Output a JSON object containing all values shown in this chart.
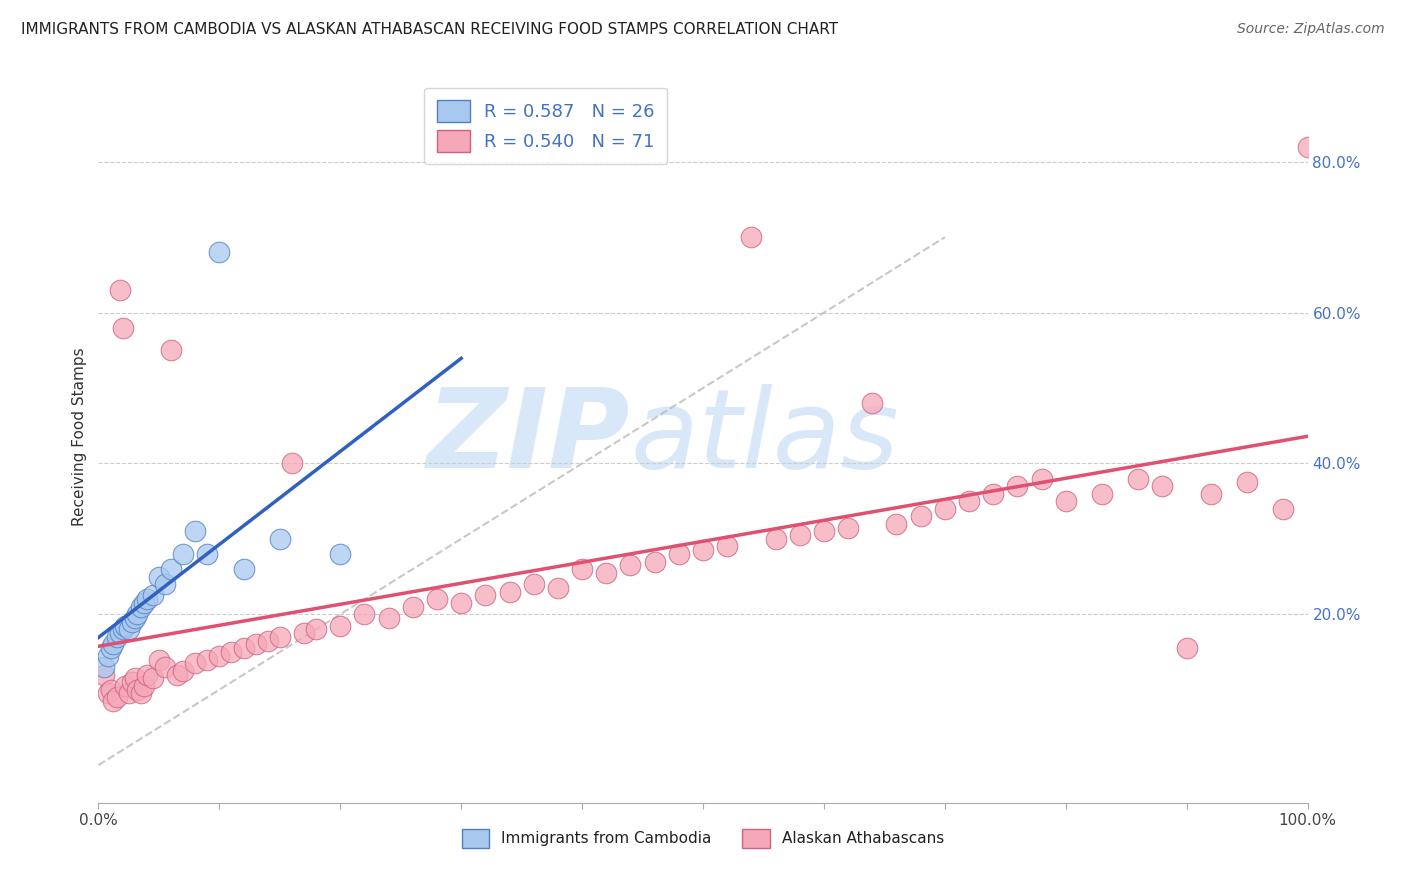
{
  "title": "IMMIGRANTS FROM CAMBODIA VS ALASKAN ATHABASCAN RECEIVING FOOD STAMPS CORRELATION CHART",
  "source": "Source: ZipAtlas.com",
  "ylabel": "Receiving Food Stamps",
  "xlim": [
    0.0,
    1.0
  ],
  "ylim": [
    -0.05,
    0.92
  ],
  "ytick_vals": [
    0.2,
    0.4,
    0.6,
    0.8
  ],
  "ytick_labels": [
    "20.0%",
    "40.0%",
    "60.0%",
    "80.0%"
  ],
  "legend_labels": [
    "Immigrants from Cambodia",
    "Alaskan Athabascans"
  ],
  "blue_color": "#A8C8F0",
  "pink_color": "#F5A8B8",
  "blue_edge": "#5080C0",
  "pink_edge": "#D06080",
  "blue_line": "#3060C0",
  "pink_line": "#E05070",
  "grid_color": "#CCCCCC",
  "ref_line_color": "#BBBBBB",
  "watermark_color": "#D8E8F8",
  "cambodia_x": [
    0.005,
    0.008,
    0.01,
    0.012,
    0.015,
    0.018,
    0.02,
    0.022,
    0.025,
    0.028,
    0.03,
    0.032,
    0.035,
    0.038,
    0.04,
    0.045,
    0.05,
    0.055,
    0.06,
    0.07,
    0.08,
    0.09,
    0.1,
    0.12,
    0.15,
    0.2
  ],
  "cambodia_y": [
    0.13,
    0.145,
    0.155,
    0.16,
    0.17,
    0.175,
    0.18,
    0.185,
    0.18,
    0.19,
    0.195,
    0.2,
    0.21,
    0.215,
    0.22,
    0.225,
    0.25,
    0.24,
    0.26,
    0.28,
    0.31,
    0.28,
    0.68,
    0.26,
    0.3,
    0.28
  ],
  "athabascan_x": [
    0.005,
    0.008,
    0.01,
    0.012,
    0.015,
    0.018,
    0.02,
    0.022,
    0.025,
    0.028,
    0.03,
    0.032,
    0.035,
    0.038,
    0.04,
    0.045,
    0.05,
    0.055,
    0.06,
    0.065,
    0.07,
    0.08,
    0.09,
    0.1,
    0.11,
    0.12,
    0.13,
    0.14,
    0.15,
    0.16,
    0.17,
    0.18,
    0.2,
    0.22,
    0.24,
    0.26,
    0.28,
    0.3,
    0.32,
    0.34,
    0.36,
    0.38,
    0.4,
    0.42,
    0.44,
    0.46,
    0.48,
    0.5,
    0.52,
    0.54,
    0.56,
    0.58,
    0.6,
    0.62,
    0.64,
    0.66,
    0.68,
    0.7,
    0.72,
    0.74,
    0.76,
    0.78,
    0.8,
    0.83,
    0.86,
    0.88,
    0.9,
    0.92,
    0.95,
    0.98,
    1.0
  ],
  "athabascan_y": [
    0.12,
    0.095,
    0.1,
    0.085,
    0.09,
    0.63,
    0.58,
    0.105,
    0.095,
    0.11,
    0.115,
    0.1,
    0.095,
    0.105,
    0.12,
    0.115,
    0.14,
    0.13,
    0.55,
    0.12,
    0.125,
    0.135,
    0.14,
    0.145,
    0.15,
    0.155,
    0.16,
    0.165,
    0.17,
    0.4,
    0.175,
    0.18,
    0.185,
    0.2,
    0.195,
    0.21,
    0.22,
    0.215,
    0.225,
    0.23,
    0.24,
    0.235,
    0.26,
    0.255,
    0.265,
    0.27,
    0.28,
    0.285,
    0.29,
    0.7,
    0.3,
    0.305,
    0.31,
    0.315,
    0.48,
    0.32,
    0.33,
    0.34,
    0.35,
    0.36,
    0.37,
    0.38,
    0.35,
    0.36,
    0.38,
    0.37,
    0.155,
    0.36,
    0.375,
    0.34,
    0.82
  ]
}
